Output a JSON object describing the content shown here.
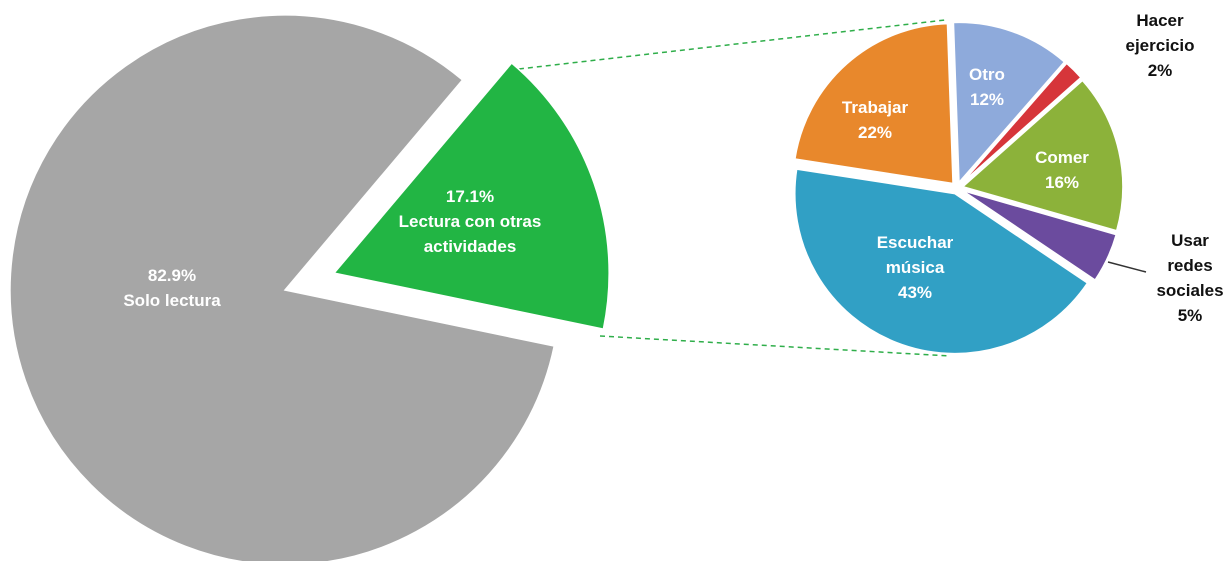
{
  "chart_data": [
    {
      "type": "pie",
      "categories": [
        "Solo lectura",
        "Lectura con otras actividades"
      ],
      "values": [
        82.9,
        17.1
      ],
      "value_labels": [
        "82.9%",
        "17.1%"
      ],
      "colors": [
        "#a6a6a6",
        "#22b544"
      ]
    },
    {
      "type": "pie",
      "categories": [
        "Otro",
        "Hacer ejercicio",
        "Comer",
        "Usar redes sociales",
        "Escuchar música",
        "Trabajar"
      ],
      "values": [
        12,
        2,
        16,
        5,
        43,
        22
      ],
      "value_labels": [
        "12%",
        "2%",
        "16%",
        "5%",
        "43%",
        "22%"
      ],
      "colors": [
        "#8eaadb",
        "#d6353a",
        "#8cb23a",
        "#6b4b9e",
        "#31a0c5",
        "#e8882c"
      ]
    }
  ]
}
